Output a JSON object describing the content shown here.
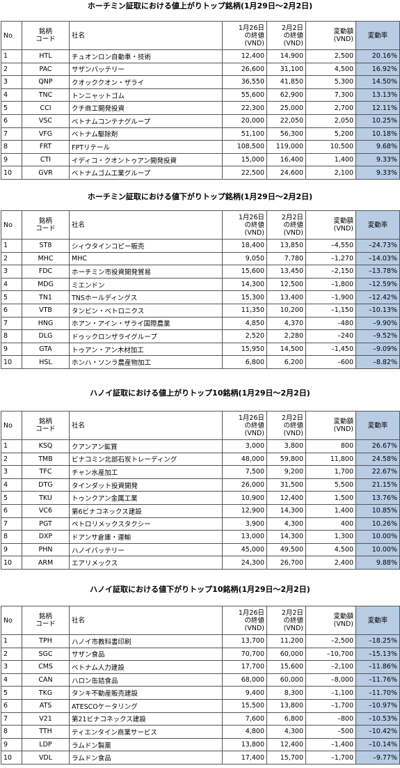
{
  "columns": [
    "No",
    "銘柄\nコード",
    "社名",
    "1月26日\nの終値\n(VND)",
    "2月2日\nの終値\n(VND)",
    "変動額\n(VND)",
    "変動率"
  ],
  "tables": [
    {
      "title": "ホーチミン証取における値上がりトップ銘柄(1月29日～2月2日)",
      "rows": [
        [
          "1",
          "HTL",
          "チュオンロン自動車・技術",
          "12,400",
          "14,900",
          "2,500",
          "20.16%"
        ],
        [
          "2",
          "PAC",
          "サザンバッテリー",
          "26,600",
          "31,100",
          "4,500",
          "16.92%"
        ],
        [
          "3",
          "QNP",
          "クオッククオン・ザライ",
          "36,550",
          "41,850",
          "5,300",
          "14.50%"
        ],
        [
          "4",
          "TNC",
          "トンニャットゴム",
          "55,600",
          "62,900",
          "7,300",
          "13.13%"
        ],
        [
          "5",
          "CCI",
          "クチ商工開発投資",
          "22,300",
          "25,000",
          "2,700",
          "12.11%"
        ],
        [
          "6",
          "VSC",
          "ベトナムコンテナグループ",
          "20,000",
          "22,050",
          "2,050",
          "10.25%"
        ],
        [
          "7",
          "VFG",
          "ベトナム駆除剤",
          "51,100",
          "56,300",
          "5,200",
          "10.18%"
        ],
        [
          "8",
          "FRT",
          "FPTリテール",
          "108,500",
          "119,000",
          "10,500",
          "9.68%"
        ],
        [
          "9",
          "CTI",
          "イディコ・クオントゥアン開発投資",
          "15,000",
          "16,400",
          "1,400",
          "9.33%"
        ],
        [
          "10",
          "GVR",
          "ベトナムゴム工業グループ",
          "22,500",
          "24,600",
          "2,100",
          "9.33%"
        ]
      ]
    },
    {
      "title": "ホーチミン証取における値下がりトップ銘柄(1月29日～2月2日)",
      "rows": [
        [
          "1",
          "ST8",
          "シィウタインコピー販売",
          "18,400",
          "13,850",
          "–4,550",
          "–24.73%"
        ],
        [
          "2",
          "MHC",
          "MHC",
          "9,050",
          "7,780",
          "–1,270",
          "–14.03%"
        ],
        [
          "3",
          "FDC",
          "ホーチミン市投資開発貿易",
          "15,600",
          "13,450",
          "–2,150",
          "–13.78%"
        ],
        [
          "4",
          "MDG",
          "ミエンドン",
          "14,300",
          "12,500",
          "–1,800",
          "–12.59%"
        ],
        [
          "5",
          "TN1",
          "TNSホールディングス",
          "15,300",
          "13,400",
          "–1,900",
          "–12.42%"
        ],
        [
          "6",
          "VTB",
          "タンビン・ベトロニクス",
          "11,350",
          "10,200",
          "–1,150",
          "–10.13%"
        ],
        [
          "7",
          "HNG",
          "ホアン・アイン・ザライ国際農業",
          "4,850",
          "4,370",
          "–480",
          "–9.90%"
        ],
        [
          "8",
          "DLG",
          "ドゥックロンザライグループ",
          "2,520",
          "2,280",
          "–240",
          "–9.52%"
        ],
        [
          "9",
          "GTA",
          "トゥアン・アン木材加工",
          "15,950",
          "14,500",
          "–1,450",
          "–9.09%"
        ],
        [
          "10",
          "HSL",
          "ホンハ・ソンラ農産物加工",
          "6,800",
          "6,200",
          "–600",
          "–8.82%"
        ]
      ]
    },
    {
      "title": "ハノイ証取における値上がりトップ10銘柄(1月29日～2月2日)",
      "rows": [
        [
          "1",
          "KSQ",
          "クアンアン鉱質",
          "3,000",
          "3,800",
          "800",
          "26.67%"
        ],
        [
          "2",
          "TMB",
          "ビナコミン北部石炭トレーディング",
          "48,000",
          "59,800",
          "11,800",
          "24.58%"
        ],
        [
          "3",
          "TFC",
          "チャン水産加工",
          "7,500",
          "9,200",
          "1,700",
          "22.67%"
        ],
        [
          "4",
          "DTG",
          "タインダット投資開発",
          "26,000",
          "31,500",
          "5,500",
          "21.15%"
        ],
        [
          "5",
          "TKU",
          "トゥンクアン金属工業",
          "10,900",
          "12,400",
          "1,500",
          "13.76%"
        ],
        [
          "6",
          "VC6",
          "第6ビナコネックス建設",
          "12,900",
          "14,300",
          "1,400",
          "10.85%"
        ],
        [
          "7",
          "PGT",
          "ペトロリメックスタクシー",
          "3,900",
          "4,300",
          "400",
          "10.26%"
        ],
        [
          "8",
          "DXP",
          "ドアンサ倉庫・運輸",
          "13,000",
          "14,300",
          "1,300",
          "10.00%"
        ],
        [
          "9",
          "PHN",
          "ハノイバッテリー",
          "45,000",
          "49,500",
          "4,500",
          "10.00%"
        ],
        [
          "10",
          "ARM",
          "エアリメックス",
          "24,300",
          "26,700",
          "2,400",
          "9.88%"
        ]
      ]
    },
    {
      "title": "ハノイ証取における値下がりトップ10銘柄(1月29日～2月2日)",
      "rows": [
        [
          "1",
          "TPH",
          "ハノイ市教科書印刷",
          "13,700",
          "11,200",
          "–2,500",
          "–18.25%"
        ],
        [
          "2",
          "SGC",
          "サザン食品",
          "70,700",
          "60,000",
          "–10,700",
          "–15.13%"
        ],
        [
          "3",
          "CMS",
          "ベトナム人力建設",
          "17,700",
          "15,600",
          "–2,100",
          "–11.86%"
        ],
        [
          "4",
          "CAN",
          "ハロン缶詰食品",
          "68,000",
          "60,000",
          "–8,000",
          "–11.76%"
        ],
        [
          "5",
          "TKG",
          "タンキ不動産販売建設",
          "9,400",
          "8,300",
          "–1,100",
          "–11.70%"
        ],
        [
          "6",
          "ATS",
          "ATESCOケータリング",
          "15,500",
          "13,800",
          "–1,700",
          "–10.97%"
        ],
        [
          "7",
          "V21",
          "第21ビナコネックス建設",
          "7,600",
          "6,800",
          "–800",
          "–10.53%"
        ],
        [
          "8",
          "TTH",
          "ティエンタイン商業サービス",
          "4,800",
          "4,300",
          "–500",
          "–10.42%"
        ],
        [
          "9",
          "LDP",
          "ラムドン製薬",
          "13,800",
          "12,400",
          "–1,400",
          "–10.14%"
        ],
        [
          "10",
          "VDL",
          "ラムドン食品",
          "17,400",
          "15,700",
          "–1,700",
          "–9.77%"
        ]
      ]
    }
  ]
}
